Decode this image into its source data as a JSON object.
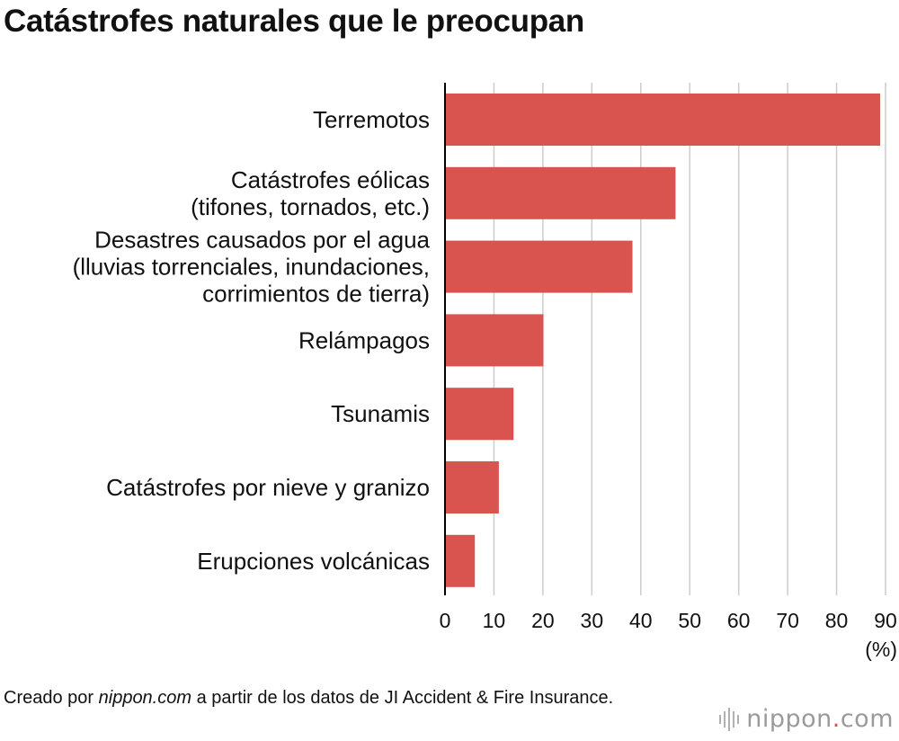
{
  "title": "Catástrofes naturales que le preocupan",
  "source": {
    "prefix": "Creado por ",
    "site": "nippon.com",
    "suffix": " a partir de los datos de JI Accident & Fire Insurance."
  },
  "logo": {
    "part1": "nippon",
    "dot": ".",
    "part2": "com"
  },
  "colors": {
    "bar": "#d9534f",
    "grid": "#cccccc",
    "axis": "#000000",
    "text": "#111111"
  },
  "chart_data": {
    "type": "bar",
    "orientation": "horizontal",
    "categories": [
      [
        "Terremotos"
      ],
      [
        "Catástrofes eólicas",
        "(tifones, tornados, etc.)"
      ],
      [
        "Desastres causados por el agua",
        "(lluvias torrenciales, inundaciones,",
        "corrimientos de tierra)"
      ],
      [
        "Relámpagos"
      ],
      [
        "Tsunamis"
      ],
      [
        "Catástrofes por nieve y granizo"
      ],
      [
        "Erupciones volcánicas"
      ]
    ],
    "values": [
      88.9,
      47.1,
      38.3,
      20.1,
      14.0,
      11.0,
      6.1
    ],
    "xlim": [
      0,
      90
    ],
    "xticks": [
      0,
      10,
      20,
      30,
      40,
      50,
      60,
      70,
      80,
      90
    ],
    "xunit": "(%)",
    "grid": true
  }
}
